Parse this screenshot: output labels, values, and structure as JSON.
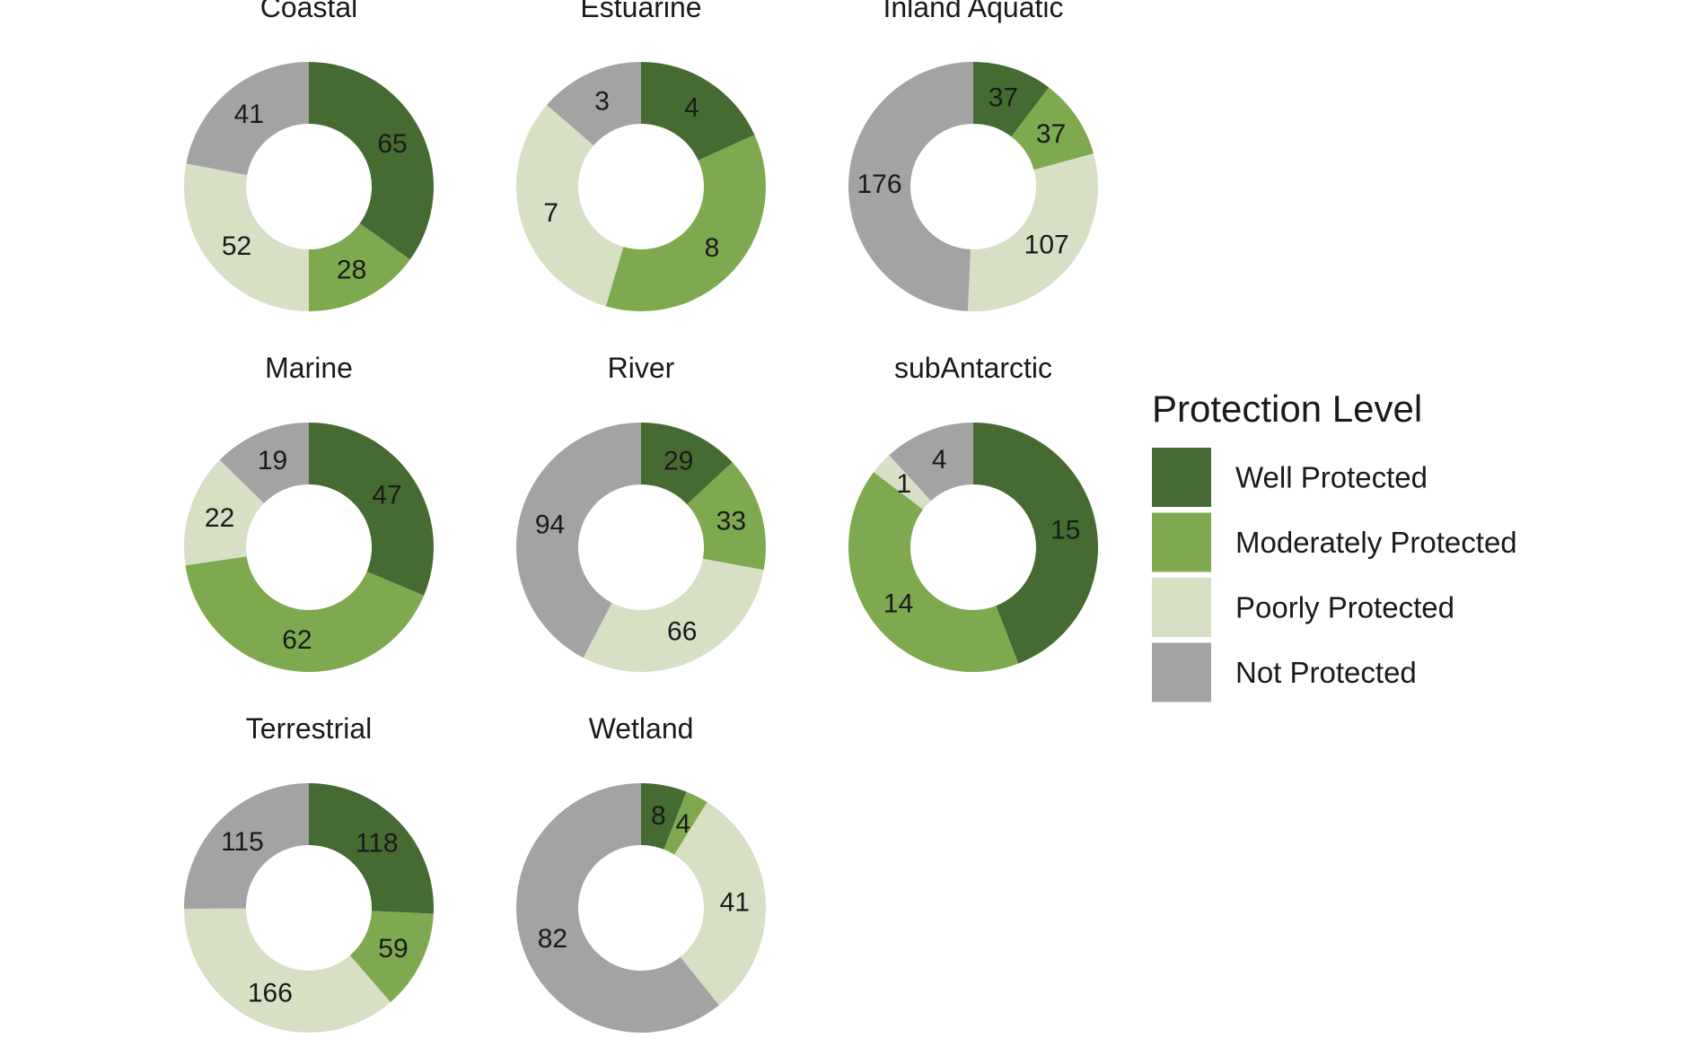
{
  "colors": {
    "well": "#466b32",
    "moderately": "#7fa94f",
    "poorly": "#d7dfc4",
    "not": "#a3a3a3"
  },
  "legend": {
    "title": "Protection Level",
    "items": [
      {
        "key": "well",
        "label": "Well Protected",
        "color": "#466b32"
      },
      {
        "key": "moderately",
        "label": "Moderately Protected",
        "color": "#7fa94f"
      },
      {
        "key": "poorly",
        "label": "Poorly Protected",
        "color": "#d7dfc4"
      },
      {
        "key": "not",
        "label": "Not Protected",
        "color": "#a3a3a3"
      }
    ]
  },
  "chart_data": [
    {
      "type": "pie",
      "title": "Coastal",
      "categories": [
        "Well Protected",
        "Moderately Protected",
        "Poorly Protected",
        "Not Protected"
      ],
      "values": [
        65,
        28,
        52,
        41
      ],
      "donut": true
    },
    {
      "type": "pie",
      "title": "Estuarine",
      "categories": [
        "Well Protected",
        "Moderately Protected",
        "Poorly Protected",
        "Not Protected"
      ],
      "values": [
        4,
        8,
        7,
        3
      ],
      "donut": true
    },
    {
      "type": "pie",
      "title": "Inland Aquatic",
      "categories": [
        "Well Protected",
        "Moderately Protected",
        "Poorly Protected",
        "Not Protected"
      ],
      "values": [
        37,
        37,
        107,
        176
      ],
      "donut": true
    },
    {
      "type": "pie",
      "title": "Marine",
      "categories": [
        "Well Protected",
        "Moderately Protected",
        "Poorly Protected",
        "Not Protected"
      ],
      "values": [
        47,
        62,
        22,
        19
      ],
      "donut": true
    },
    {
      "type": "pie",
      "title": "River",
      "categories": [
        "Well Protected",
        "Moderately Protected",
        "Poorly Protected",
        "Not Protected"
      ],
      "values": [
        29,
        33,
        66,
        94
      ],
      "donut": true
    },
    {
      "type": "pie",
      "title": "subAntarctic",
      "categories": [
        "Well Protected",
        "Moderately Protected",
        "Poorly Protected",
        "Not Protected"
      ],
      "values": [
        15,
        14,
        1,
        4
      ],
      "donut": true
    },
    {
      "type": "pie",
      "title": "Terrestrial",
      "categories": [
        "Well Protected",
        "Moderately Protected",
        "Poorly Protected",
        "Not Protected"
      ],
      "values": [
        118,
        59,
        166,
        115
      ],
      "donut": true
    },
    {
      "type": "pie",
      "title": "Wetland",
      "categories": [
        "Well Protected",
        "Moderately Protected",
        "Poorly Protected",
        "Not Protected"
      ],
      "values": [
        8,
        4,
        41,
        82
      ],
      "donut": true
    }
  ]
}
